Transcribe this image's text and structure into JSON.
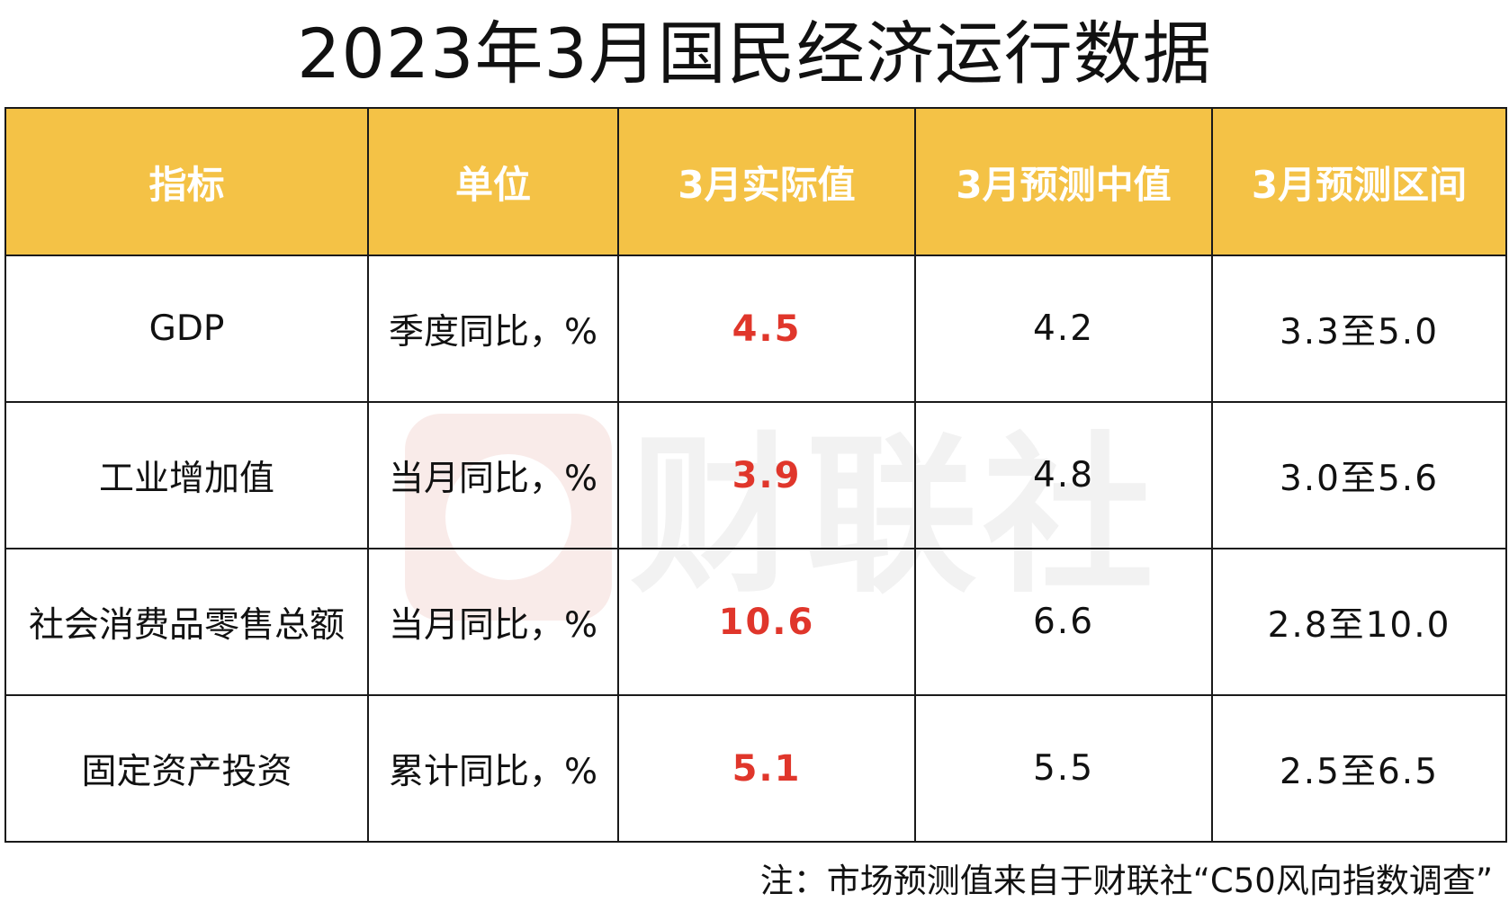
{
  "title": "2023年3月国民经济运行数据",
  "table": {
    "headers": [
      "指标",
      "单位",
      "3月实际值",
      "3月预测中值",
      "3月预测区间"
    ],
    "rows": [
      {
        "indicator": "GDP",
        "unit": "季度同比，%",
        "actual": "4.5",
        "forecast_median": "4.2",
        "forecast_range": "3.3至5.0"
      },
      {
        "indicator": "工业增加值",
        "unit": "当月同比，%",
        "actual": "3.9",
        "forecast_median": "4.8",
        "forecast_range": "3.0至5.6"
      },
      {
        "indicator": "社会消费品零售总额",
        "unit": "当月同比，%",
        "actual": "10.6",
        "forecast_median": "6.6",
        "forecast_range": "2.8至10.0"
      },
      {
        "indicator": "固定资产投资",
        "unit": "累计同比，%",
        "actual": "5.1",
        "forecast_median": "5.5",
        "forecast_range": "2.5至6.5"
      }
    ]
  },
  "watermark": {
    "text": "财联社"
  },
  "note": "注：市场预测值来自于财联社“C50风向指数调查”",
  "colors": {
    "header_bg": "#f4c246",
    "header_text": "#ffffff",
    "actual_value": "#e0362b"
  }
}
